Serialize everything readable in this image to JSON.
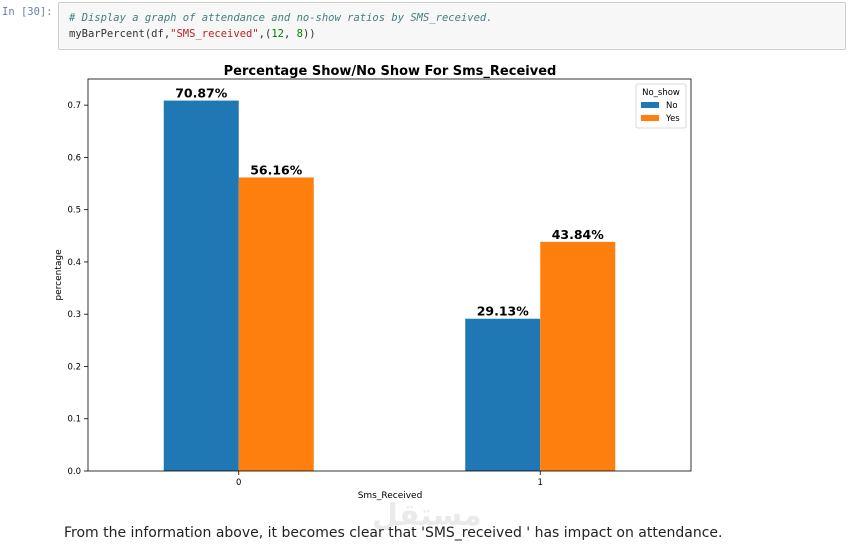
{
  "cell": {
    "prompt": "In [30]:",
    "comment": "# Display a graph of attendance and no-show ratios by SMS_received.",
    "code_func": "myBarPercent(df,",
    "code_str": "\"SMS_received\"",
    "code_args_open": ",(",
    "code_num1": "12",
    "code_sep": ", ",
    "code_num2": "8",
    "code_close": "))"
  },
  "chart_data": {
    "type": "bar",
    "title": "Percentage Show/No Show For Sms_Received",
    "xlabel": "Sms_Received",
    "ylabel": "percentage",
    "categories": [
      "0",
      "1"
    ],
    "series": [
      {
        "name": "No",
        "values": [
          0.7087,
          0.2913
        ],
        "labels": [
          "70.87%",
          "29.13%"
        ],
        "color": "#1f77b4"
      },
      {
        "name": "Yes",
        "values": [
          0.5616,
          0.4384
        ],
        "labels": [
          "56.16%",
          "43.84%"
        ],
        "color": "#ff7f0e"
      }
    ],
    "ylim": [
      0,
      0.75
    ],
    "yticks": [
      "0.0",
      "0.1",
      "0.2",
      "0.3",
      "0.4",
      "0.5",
      "0.6",
      "0.7"
    ],
    "legend_title": "No_show",
    "legend_position": "top-right",
    "grid": false
  },
  "watermark": "مستقل",
  "conclusion": "From the information above, it becomes clear that 'SMS_received ' has impact on attendance."
}
